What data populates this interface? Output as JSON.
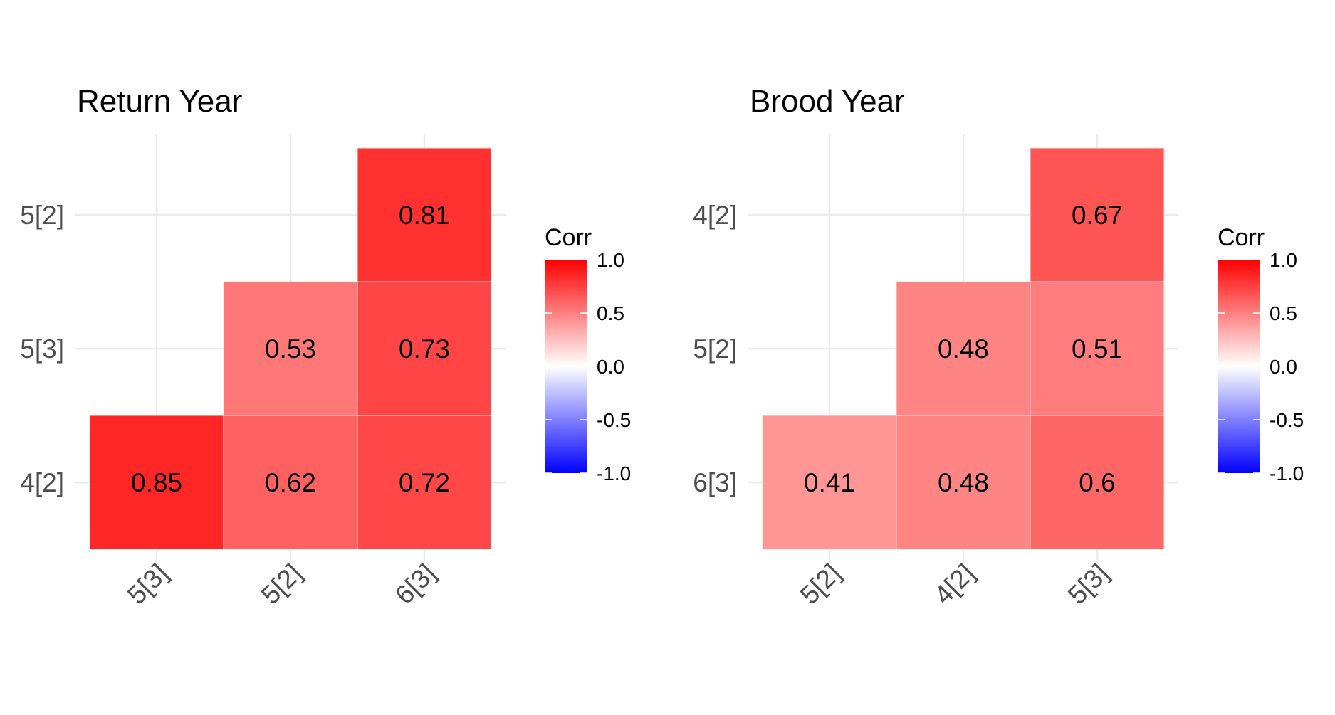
{
  "chart_data": [
    {
      "type": "heatmap",
      "title": "Return Year",
      "x_categories": [
        "5[3]",
        "5[2]",
        "6[3]"
      ],
      "y_categories": [
        "5[2]",
        "5[3]",
        "4[2]"
      ],
      "cells": [
        {
          "x": "6[3]",
          "y": "5[2]",
          "value": 0.81,
          "label": "0.81"
        },
        {
          "x": "5[2]",
          "y": "5[3]",
          "value": 0.53,
          "label": "0.53"
        },
        {
          "x": "6[3]",
          "y": "5[3]",
          "value": 0.73,
          "label": "0.73"
        },
        {
          "x": "5[3]",
          "y": "4[2]",
          "value": 0.85,
          "label": "0.85"
        },
        {
          "x": "5[2]",
          "y": "4[2]",
          "value": 0.62,
          "label": "0.62"
        },
        {
          "x": "6[3]",
          "y": "4[2]",
          "value": 0.72,
          "label": "0.72"
        }
      ],
      "legend": {
        "title": "Corr",
        "range": [
          -1.0,
          1.0
        ],
        "ticks": [
          1.0,
          0.5,
          0.0,
          -0.5,
          -1.0
        ],
        "tick_labels": [
          "1.0",
          "0.5",
          "0.0",
          "-0.5",
          "-1.0"
        ],
        "colors": {
          "low": "#0000ff",
          "mid": "#ffffff",
          "high": "#ff0000"
        }
      },
      "grid": true
    },
    {
      "type": "heatmap",
      "title": "Brood Year",
      "x_categories": [
        "5[2]",
        "4[2]",
        "5[3]"
      ],
      "y_categories": [
        "4[2]",
        "5[2]",
        "6[3]"
      ],
      "cells": [
        {
          "x": "5[3]",
          "y": "4[2]",
          "value": 0.67,
          "label": "0.67"
        },
        {
          "x": "4[2]",
          "y": "5[2]",
          "value": 0.48,
          "label": "0.48"
        },
        {
          "x": "5[3]",
          "y": "5[2]",
          "value": 0.51,
          "label": "0.51"
        },
        {
          "x": "5[2]",
          "y": "6[3]",
          "value": 0.41,
          "label": "0.41"
        },
        {
          "x": "4[2]",
          "y": "6[3]",
          "value": 0.48,
          "label": "0.48"
        },
        {
          "x": "5[3]",
          "y": "6[3]",
          "value": 0.6,
          "label": "0.6"
        }
      ],
      "legend": {
        "title": "Corr",
        "range": [
          -1.0,
          1.0
        ],
        "ticks": [
          1.0,
          0.5,
          0.0,
          -0.5,
          -1.0
        ],
        "tick_labels": [
          "1.0",
          "0.5",
          "0.0",
          "-0.5",
          "-1.0"
        ],
        "colors": {
          "low": "#0000ff",
          "mid": "#ffffff",
          "high": "#ff0000"
        }
      },
      "grid": true
    }
  ]
}
